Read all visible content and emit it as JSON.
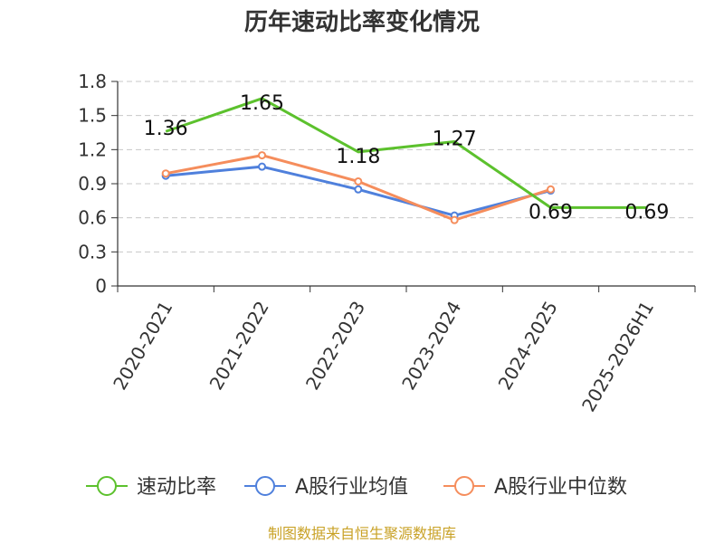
{
  "chart_data": {
    "type": "line",
    "title": "历年速动比率变化情况",
    "categories": [
      "2020-2021",
      "2021-2022",
      "2022-2023",
      "2023-2024",
      "2024-2025",
      "2025-2026H1"
    ],
    "ylim": [
      0,
      1.8
    ],
    "yticks": [
      "0",
      "0.3",
      "0.6",
      "0.9",
      "1.2",
      "1.5",
      "1.8"
    ],
    "series": [
      {
        "name": "速动比率",
        "color": "#5cc12d",
        "values": [
          1.36,
          1.65,
          1.18,
          1.27,
          0.69,
          0.69
        ],
        "labels": [
          "1.36",
          "1.65",
          "1.18",
          "1.27",
          "0.69",
          "0.69"
        ],
        "show_labels": true,
        "show_markers": false
      },
      {
        "name": "A股行业均值",
        "color": "#4f80dc",
        "values": [
          0.97,
          1.05,
          0.85,
          0.62,
          0.84,
          null
        ],
        "show_labels": false,
        "show_markers": true
      },
      {
        "name": "A股行业中位数",
        "color": "#f58d5c",
        "values": [
          0.99,
          1.15,
          0.92,
          0.58,
          0.85,
          null
        ],
        "show_labels": false,
        "show_markers": true
      }
    ],
    "grid": true,
    "legend_position": "bottom"
  },
  "source": "制图数据来自恒生聚源数据库"
}
